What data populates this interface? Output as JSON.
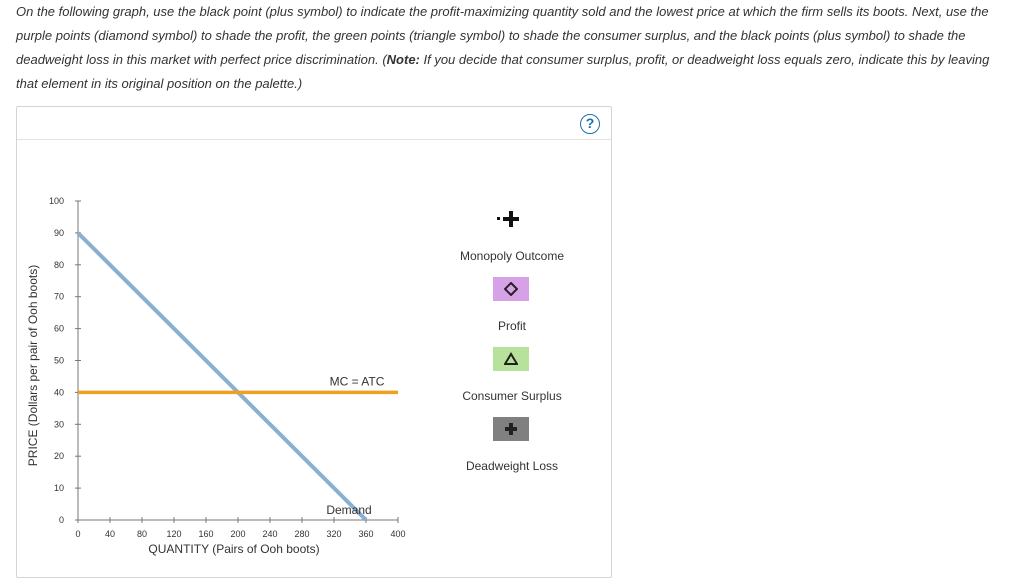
{
  "instructions": {
    "part1": "On the following graph, use the black point (plus symbol) to indicate the profit-maximizing quantity sold and the lowest price at which the firm sells its boots. Next, use the purple points (diamond symbol) to shade the profit, the green points (triangle symbol) to shade the consumer surplus, and the black points (plus symbol) to shade the deadweight loss in this market with perfect price discrimination. (",
    "note_label": "Note:",
    "part2": " If you decide that consumer surplus, profit, or deadweight loss equals zero, indicate this by leaving that element in its original position on the palette.)"
  },
  "help_label": "?",
  "palette": {
    "monopoly_outcome": "Monopoly Outcome",
    "profit": "Profit",
    "consumer_surplus": "Consumer Surplus",
    "deadweight_loss": "Deadweight Loss",
    "colors": {
      "monopoly_point": "#111111",
      "profit": "#d6a1e6",
      "consumer_surplus": "#b6e29b",
      "deadweight_loss": "#808080"
    }
  },
  "chart_data": {
    "type": "line",
    "xlabel": "QUANTITY (Pairs of Ooh boots)",
    "ylabel": "PRICE (Dollars per pair of Ooh boots)",
    "xlim": [
      0,
      400
    ],
    "ylim": [
      0,
      100
    ],
    "x_ticks": [
      0,
      40,
      80,
      120,
      160,
      200,
      240,
      280,
      320,
      360,
      400
    ],
    "y_ticks": [
      0,
      10,
      20,
      30,
      40,
      50,
      60,
      70,
      80,
      90,
      100
    ],
    "series": [
      {
        "name": "Demand",
        "color": "#8ab0d0",
        "points": [
          [
            0,
            90
          ],
          [
            360,
            0
          ]
        ]
      },
      {
        "name": "MC = ATC",
        "color": "#f0a020",
        "points": [
          [
            0,
            40
          ],
          [
            400,
            40
          ]
        ]
      }
    ],
    "annotations": [
      {
        "text": "MC = ATC",
        "x": 320,
        "y": 40
      },
      {
        "text": "Demand",
        "x": 320,
        "y": 0
      }
    ]
  }
}
